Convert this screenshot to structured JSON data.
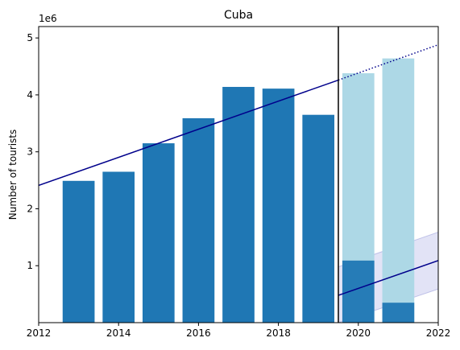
{
  "chart_data": {
    "type": "bar",
    "title": "Cuba",
    "xlabel": "",
    "ylabel": "Number of tourists",
    "y_offset_label": "1e6",
    "xlim": [
      2012,
      2022
    ],
    "ylim": [
      0,
      5200000
    ],
    "x_ticks": [
      "2012",
      "2014",
      "2016",
      "2018",
      "2020",
      "2022"
    ],
    "y_ticks": [
      "1",
      "2",
      "3",
      "4",
      "5"
    ],
    "grid": false,
    "colors": {
      "actual": "#1f77b4",
      "forecast": "#add8e6",
      "trend": "#00008b",
      "band": "#c6c8ee",
      "cutoff": "#000000"
    },
    "series": [
      {
        "kind": "bars",
        "x": [
          2013,
          2014,
          2015,
          2016,
          2017,
          2018,
          2019
        ],
        "values": [
          2490000,
          2650000,
          3150000,
          3590000,
          4140000,
          4110000,
          3650000
        ]
      },
      {
        "kind": "forecast-bars",
        "x": [
          2020,
          2021
        ],
        "values": [
          4380000,
          4640000
        ]
      },
      {
        "kind": "actual-bars-post-cutoff",
        "x": [
          2020,
          2021
        ],
        "values": [
          1090000,
          350000
        ]
      },
      {
        "kind": "trend-line",
        "x": [
          2012,
          2019.5
        ],
        "values": [
          2410000,
          4260000
        ]
      },
      {
        "kind": "trend-extrapolation",
        "x": [
          2019.5,
          2022
        ],
        "values": [
          4260000,
          4880000
        ]
      },
      {
        "kind": "recovery-line",
        "x": [
          2019.5,
          2022
        ],
        "values": [
          480000,
          1090000
        ]
      },
      {
        "kind": "recovery-band",
        "x": [
          2019.5,
          2022
        ],
        "upper": [
          980000,
          1590000
        ],
        "lower": [
          0,
          590000
        ]
      },
      {
        "kind": "cutoff-line",
        "x": [
          2019.5
        ]
      }
    ]
  }
}
